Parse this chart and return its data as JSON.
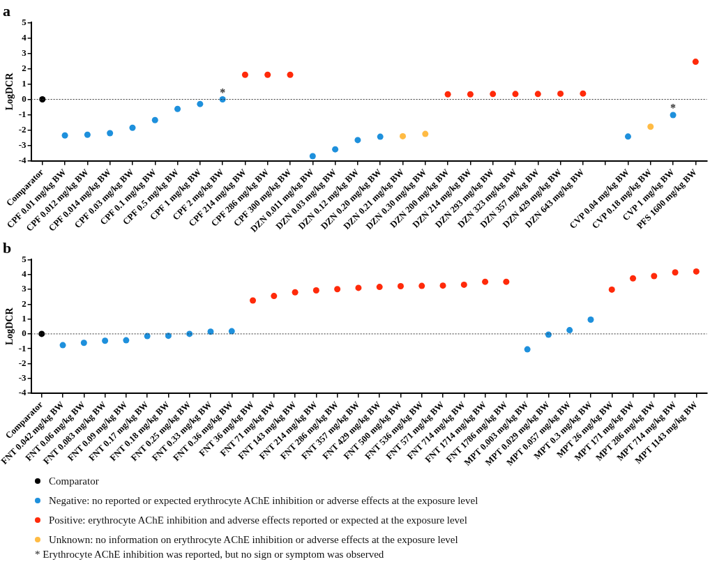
{
  "chart_data": [
    {
      "type": "scatter",
      "title": "a",
      "ylabel": "LogDCR",
      "categories": [
        "Comparator",
        "CPF 0.01 mg/kg BW",
        "CPF 0.012 mg/kg BW",
        "CPF 0.014 mg/kg BW",
        "CPF 0.03 mg/kg BW",
        "CPF 0.1 mg/kg BW",
        "CPF 0.5 mg/kg BW",
        "CPF 1 mg/kg BW",
        "CPF 2 mg/kg BW",
        "CPF 214 mg/kg BW",
        "CPF 286 mg/kg BW",
        "CPF 300 mg/kg BW",
        "DZN 0.011 mg/kg BW",
        "DZN 0.03 mg/kg BW",
        "DZN 0.12 mg/kg BW",
        "DZN 0.20 mg/kg BW",
        "DZN 0.21 mg/kg BW",
        "DZN 0.30 mg/kg BW",
        "DZN 200 mg/kg BW",
        "DZN 214 mg/kg BW",
        "DZN 293 mg/kg BW",
        "DZN 323 mg/kg BW",
        "DZN 357 mg/kg BW",
        "DZN 429 mg/kg BW",
        "DZN 643 mg/kg BW",
        null,
        "CVP 0.04 mg/kg BW",
        "CVP 0.18 mg/kg BW",
        "CVP 1 mg/kg BW",
        "PFS 1600 mg/kg BW"
      ],
      "series": [
        {
          "name": "Comparator",
          "color": "#000000",
          "values": [
            0,
            null,
            null,
            null,
            null,
            null,
            null,
            null,
            null,
            null,
            null,
            null,
            null,
            null,
            null,
            null,
            null,
            null,
            null,
            null,
            null,
            null,
            null,
            null,
            null,
            null,
            null,
            null,
            null,
            null
          ]
        },
        {
          "name": "Negative: no reported or expected erythrocyte AChE inhibition or adverse effects at the exposure level",
          "color": "#1e90dc",
          "values": [
            null,
            -2.35,
            -2.3,
            -2.2,
            -1.85,
            -1.35,
            -0.62,
            -0.3,
            0,
            null,
            null,
            null,
            -3.7,
            -3.25,
            -2.65,
            -2.43,
            null,
            null,
            null,
            null,
            null,
            null,
            null,
            null,
            null,
            null,
            -2.42,
            null,
            -1.02,
            null
          ]
        },
        {
          "name": "Positive: erythrocyte AChE inhibition and adverse effects reported or expected at the exposure level",
          "color": "#ff2a0a",
          "values": [
            null,
            null,
            null,
            null,
            null,
            null,
            null,
            null,
            null,
            1.6,
            1.6,
            1.6,
            null,
            null,
            null,
            null,
            null,
            null,
            0.33,
            0.33,
            0.35,
            0.35,
            0.35,
            0.37,
            0.38,
            null,
            null,
            null,
            null,
            2.45
          ]
        },
        {
          "name": "Unknown: no information on erythrocyte AChE inhibition or adverse effects at the exposure level",
          "color": "#ffbb44",
          "values": [
            null,
            null,
            null,
            null,
            null,
            null,
            null,
            null,
            null,
            null,
            null,
            null,
            null,
            null,
            null,
            null,
            -2.4,
            -2.25,
            null,
            null,
            null,
            null,
            null,
            null,
            null,
            null,
            null,
            -1.78,
            null,
            null
          ]
        }
      ],
      "ylim": [
        -4,
        5
      ],
      "yticks": [
        -4,
        -3,
        -2,
        -1,
        0,
        1,
        2,
        3,
        4,
        5
      ],
      "grid": false,
      "legend": "bottom",
      "marker": "circle",
      "ref_lines": [
        {
          "axis": "y",
          "value": 0,
          "line_style": "dotted"
        }
      ],
      "annotations": [
        {
          "text": "*",
          "x": "CPF 2 mg/kg BW",
          "y": 0
        },
        {
          "text": "*",
          "x": "CVP 1 mg/kg BW",
          "y": -1.02
        },
        "* Erythrocyte AChE inhibition was reported, but no sign or symptom was observed"
      ]
    },
    {
      "type": "scatter",
      "title": "b",
      "ylabel": "LogDCR",
      "categories": [
        "Comparator",
        "FNT 0.042 mg/kg BW",
        "FNT 0.06 mg/kg BW",
        "FNT 0.083 mg/kg BW",
        "FNT 0.09 mg/kg BW",
        "FNT 0.17 mg/kg BW",
        "FNT 0.18 mg/kg BW",
        "FNT 0.25 mg/kg BW",
        "FNT 0.33 mg/kg BW",
        "FNT 0.36 mg/kg BW",
        "FNT 36 mg/kg BW",
        "FNT 71 mg/kg BW",
        "FNT 143 mg/kg BW",
        "FNT 214 mg/kg BW",
        "FNT 286 mg/kg BW",
        "FNT 357 mg/kg BW",
        "FNT 429 mg/kg BW",
        "FNT 500 mg/kg BW",
        "FNT 536 mg/kg BW",
        "FNT 571 mg/kg BW",
        "FNT 714 mg/kg BW",
        "FNT 1714 mg/kg BW",
        "FNT 1786 mg/kg BW",
        "MPT 0.003 mg/kg BW",
        "MPT 0.029 mg/kg BW",
        "MPT 0.057 mg/kg BW",
        "MPT 0.3 mg/kg BW",
        "MPT 26 mg/kg BW",
        "MPT 171 mg/kg BW",
        "MPT 286 mg/kg BW",
        "MPT 714 mg/kg BW",
        "MPT 1143 mg/kg BW"
      ],
      "series": [
        {
          "color": "#000000",
          "values": [
            0,
            null,
            null,
            null,
            null,
            null,
            null,
            null,
            null,
            null,
            null,
            null,
            null,
            null,
            null,
            null,
            null,
            null,
            null,
            null,
            null,
            null,
            null,
            null,
            null,
            null,
            null,
            null,
            null,
            null,
            null,
            null
          ]
        },
        {
          "color": "#1e90dc",
          "values": [
            null,
            -0.76,
            -0.6,
            -0.46,
            -0.43,
            -0.15,
            -0.13,
            0,
            0.15,
            0.18,
            null,
            null,
            null,
            null,
            null,
            null,
            null,
            null,
            null,
            null,
            null,
            null,
            null,
            -1.04,
            -0.05,
            0.25,
            0.96,
            null,
            null,
            null,
            null,
            null
          ]
        },
        {
          "color": "#ff2a0a",
          "values": [
            null,
            null,
            null,
            null,
            null,
            null,
            null,
            null,
            null,
            null,
            2.25,
            2.55,
            2.8,
            2.93,
            3.01,
            3.1,
            3.16,
            3.21,
            3.23,
            3.25,
            3.31,
            3.51,
            3.51,
            null,
            null,
            null,
            null,
            2.98,
            3.74,
            3.89,
            4.14,
            4.2
          ]
        }
      ],
      "ylim": [
        -4,
        5
      ],
      "yticks": [
        -4,
        -3,
        -2,
        -1,
        0,
        1,
        2,
        3,
        4,
        5
      ],
      "grid": false,
      "marker": "circle",
      "ref_lines": [
        {
          "axis": "y",
          "value": 0,
          "line_style": "dotted"
        }
      ]
    }
  ]
}
